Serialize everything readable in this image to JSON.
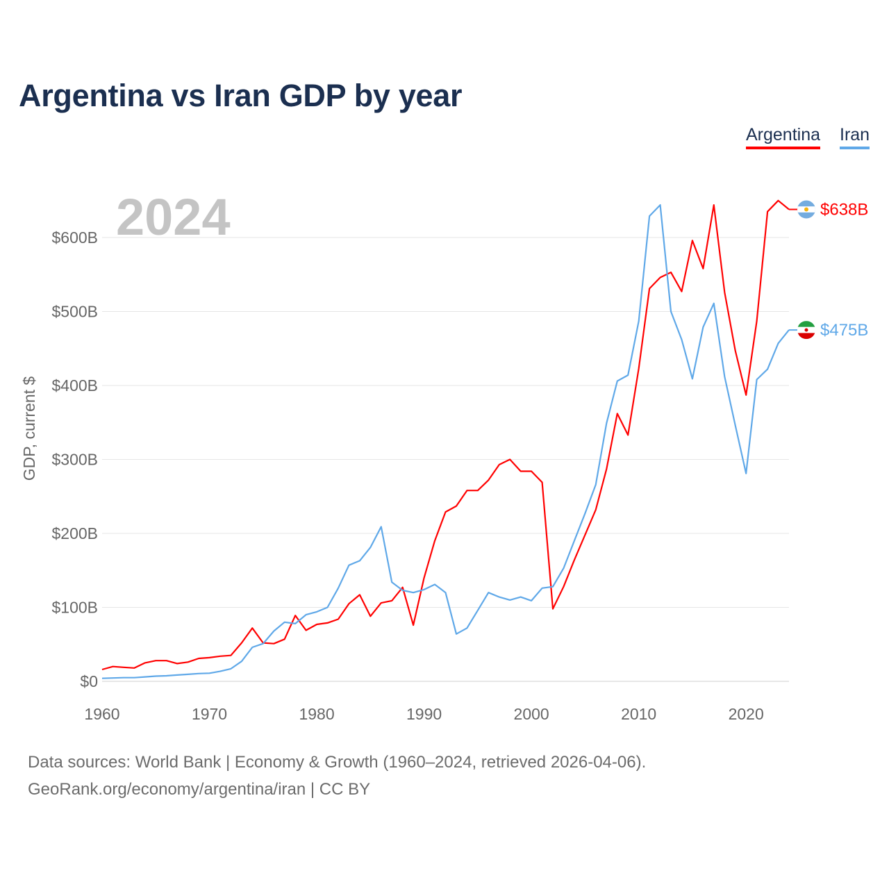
{
  "chart_data": {
    "type": "line",
    "title": "Argentina vs Iran GDP by year",
    "ylabel": "GDP, current $",
    "xlabel": "",
    "current_year_label": "2024",
    "xlim": [
      1960,
      2024
    ],
    "ylim": [
      0,
      650
    ],
    "x_ticks": [
      1960,
      1970,
      1980,
      1990,
      2000,
      2010,
      2020
    ],
    "x_tick_labels": [
      "1960",
      "1970",
      "1980",
      "1990",
      "2000",
      "2010",
      "2020"
    ],
    "y_ticks": [
      0,
      100,
      200,
      300,
      400,
      500,
      600
    ],
    "y_tick_labels": [
      "$0",
      "$100B",
      "$200B",
      "$300B",
      "$400B",
      "$500B",
      "$600B"
    ],
    "grid": true,
    "legend_position": "top-right",
    "units": "billions USD",
    "x": [
      1960,
      1961,
      1962,
      1963,
      1964,
      1965,
      1966,
      1967,
      1968,
      1969,
      1970,
      1971,
      1972,
      1973,
      1974,
      1975,
      1976,
      1977,
      1978,
      1979,
      1980,
      1981,
      1982,
      1983,
      1984,
      1985,
      1986,
      1987,
      1988,
      1989,
      1990,
      1991,
      1992,
      1993,
      1994,
      1995,
      1996,
      1997,
      1998,
      1999,
      2000,
      2001,
      2002,
      2003,
      2004,
      2005,
      2006,
      2007,
      2008,
      2009,
      2010,
      2011,
      2012,
      2013,
      2014,
      2015,
      2016,
      2017,
      2018,
      2019,
      2020,
      2021,
      2022,
      2023,
      2024
    ],
    "series": [
      {
        "name": "Argentina",
        "color": "#ff0000",
        "end_label": "$638B",
        "values": [
          16,
          20,
          19,
          18,
          25,
          28,
          28,
          24,
          26,
          31,
          32,
          34,
          35,
          52,
          72,
          52,
          51,
          57,
          89,
          69,
          77,
          79,
          84,
          105,
          117,
          88,
          106,
          109,
          127,
          76,
          140,
          190,
          229,
          237,
          258,
          258,
          272,
          293,
          300,
          284,
          284,
          269,
          98,
          128,
          164,
          198,
          232,
          287,
          362,
          333,
          423,
          531,
          546,
          553,
          527,
          596,
          558,
          644,
          526,
          447,
          387,
          487,
          635,
          650,
          638
        ]
      },
      {
        "name": "Iran",
        "color": "#5fa8e8",
        "end_label": "$475B",
        "values": [
          4,
          4.5,
          5,
          5,
          6,
          7,
          7.5,
          8.5,
          9.5,
          10.5,
          11,
          13.5,
          17,
          27,
          46,
          51,
          68,
          80,
          78,
          90,
          94,
          100,
          126,
          157,
          163,
          181,
          209,
          134,
          123,
          120,
          124,
          131,
          120,
          64,
          72,
          96,
          120,
          114,
          110,
          114,
          109,
          126,
          128,
          153,
          190,
          227,
          266,
          349,
          406,
          414,
          487,
          629,
          644,
          500,
          462,
          409,
          479,
          511,
          412,
          346,
          281,
          408,
          422,
          457,
          475
        ]
      }
    ]
  },
  "footer": {
    "line1": "Data sources: World Bank | Economy & Growth (1960–2024, retrieved 2026-04-06).",
    "line2": "GeoRank.org/economy/argentina/iran | CC BY"
  }
}
